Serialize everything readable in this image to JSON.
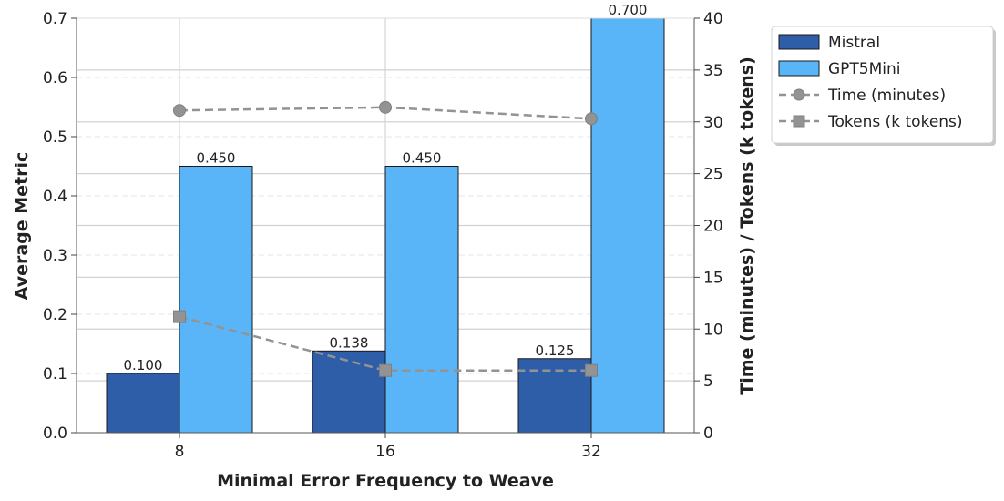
{
  "chart_data": {
    "type": "bar",
    "title": "",
    "xlabel": "Minimal Error Frequency to Weave",
    "ylabel": "Average Metric",
    "y2label": "Time (minutes) / Tokens (k tokens)",
    "categories": [
      "8",
      "16",
      "32"
    ],
    "ylim": [
      0,
      0.7
    ],
    "y2lim": [
      0,
      40
    ],
    "yticks": [
      "0.0",
      "0.1",
      "0.2",
      "0.3",
      "0.4",
      "0.5",
      "0.6",
      "0.7"
    ],
    "y2ticks": [
      "0",
      "5",
      "10",
      "15",
      "20",
      "25",
      "30",
      "35",
      "40"
    ],
    "series": [
      {
        "name": "Mistral",
        "kind": "bar",
        "axis": "left",
        "values": [
          0.1,
          0.138,
          0.125
        ],
        "labels": [
          "0.100",
          "0.138",
          "0.125"
        ],
        "color": "#2e5ea8"
      },
      {
        "name": "GPT5Mini",
        "kind": "bar",
        "axis": "left",
        "values": [
          0.45,
          0.45,
          0.7
        ],
        "labels": [
          "0.450",
          "0.450",
          "0.700"
        ],
        "color": "#59b5f8"
      },
      {
        "name": "Time (minutes)",
        "kind": "line",
        "axis": "right",
        "marker": "circle",
        "values": [
          31.1,
          31.4,
          30.3
        ],
        "color": "#939393"
      },
      {
        "name": "Tokens (k tokens)",
        "kind": "line",
        "axis": "right",
        "marker": "square",
        "values": [
          11.2,
          6.0,
          6.0
        ],
        "color": "#939393"
      }
    ],
    "grid": true,
    "legend_position": "outside-top-right"
  }
}
